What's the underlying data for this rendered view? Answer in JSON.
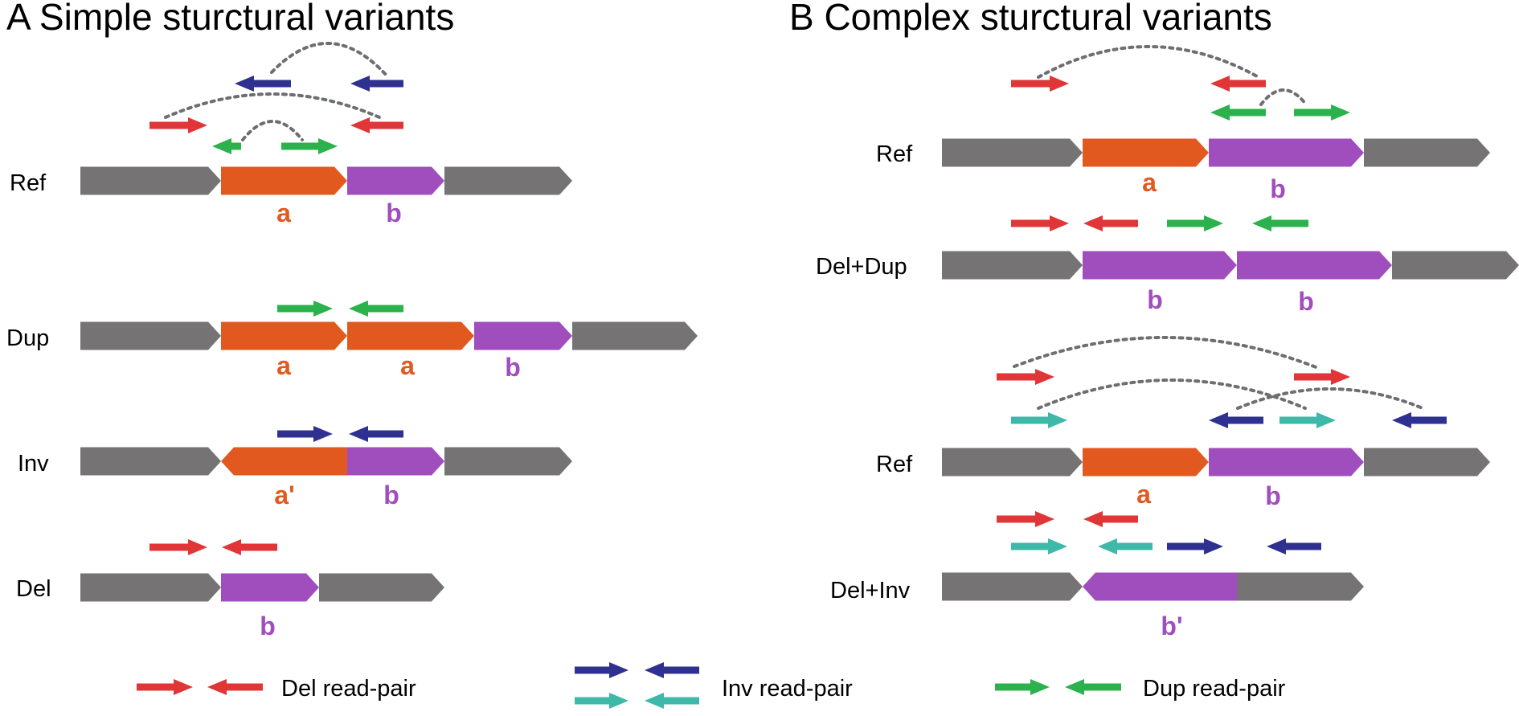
{
  "colors": {
    "gray": "#757374",
    "orange": "#E2591F",
    "purple": "#A04DBE",
    "red": "#E03638",
    "navy": "#2E3190",
    "teal": "#3EB8A8",
    "green": "#2BB24C",
    "arc": "#6D6E71"
  },
  "panel_a": {
    "title": "A  Simple sturctural variants",
    "rows": {
      "ref": "Ref",
      "dup": "Dup",
      "inv": "Inv",
      "del": "Del"
    },
    "labels": {
      "ref_a": "a",
      "ref_b": "b",
      "dup_a1": "a",
      "dup_a2": "a",
      "dup_b": "b",
      "inv_a": "a'",
      "inv_b": "b",
      "del_b": "b"
    }
  },
  "panel_b": {
    "title": "B  Complex sturctural variants",
    "rows": {
      "ref1": "Ref",
      "deldup": "Del+Dup",
      "ref2": "Ref",
      "delinv": "Del+Inv"
    },
    "labels": {
      "ref1_a": "a",
      "ref1_b": "b",
      "deldup_b1": "b",
      "deldup_b2": "b",
      "ref2_a": "a",
      "ref2_b": "b",
      "delinv_b": "b'"
    }
  },
  "legend": {
    "del": "Del read-pair",
    "inv": "Inv read-pair",
    "dup": "Dup read-pair"
  }
}
